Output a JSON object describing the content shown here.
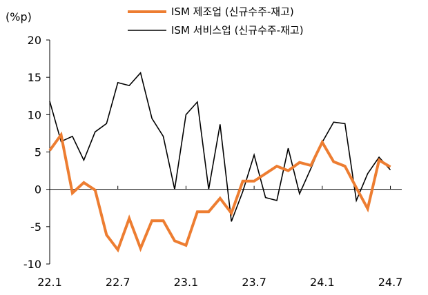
{
  "chart_data": {
    "type": "line",
    "ylabel": "(%p)",
    "ylim": [
      -10,
      20
    ],
    "yticks": [
      20,
      15,
      10,
      5,
      0,
      -5,
      -10
    ],
    "xlim": [
      0,
      31
    ],
    "xticks": [
      {
        "label": "22.1",
        "index": 0
      },
      {
        "label": "22.7",
        "index": 6
      },
      {
        "label": "23.1",
        "index": 12
      },
      {
        "label": "23.7",
        "index": 18
      },
      {
        "label": "24.1",
        "index": 24
      },
      {
        "label": "24.7",
        "index": 30
      }
    ],
    "legend_position": "top",
    "grid": false,
    "series": [
      {
        "name": "ISM 제조업 (신규수주-재고)",
        "color": "#ED7D31",
        "values": [
          5.2,
          7.3,
          -0.5,
          0.9,
          -0.1,
          -6.1,
          -8.1,
          -3.9,
          -7.9,
          -4.2,
          -4.2,
          -6.9,
          -7.5,
          -3.0,
          -3.0,
          -1.2,
          -3.2,
          1.1,
          1.1,
          2.1,
          3.1,
          2.5,
          3.6,
          3.2,
          6.3,
          3.7,
          3.1,
          0.2,
          -2.6,
          3.9,
          3.0
        ]
      },
      {
        "name": "ISM 서비스업 (신규수주-재고)",
        "color": "#000000",
        "values": [
          11.8,
          6.4,
          7.1,
          3.9,
          7.7,
          8.8,
          14.3,
          13.9,
          15.6,
          9.5,
          7.1,
          0.0,
          10.0,
          11.7,
          0.0,
          8.7,
          -4.3,
          -0.3,
          4.6,
          -1.1,
          -1.5,
          5.5,
          -0.6,
          2.8,
          6.3,
          9.0,
          8.8,
          -1.5,
          2.1,
          4.3,
          2.6
        ]
      }
    ]
  }
}
